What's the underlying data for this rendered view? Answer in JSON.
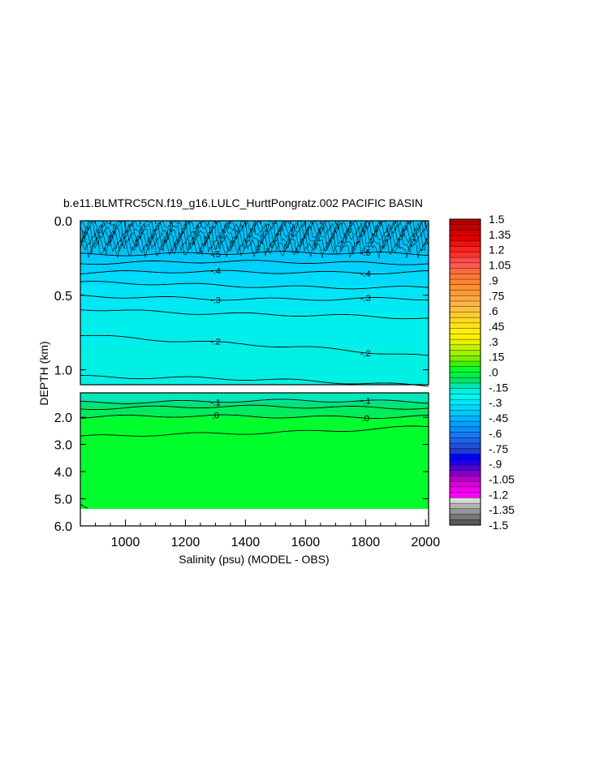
{
  "chart_data": {
    "type": "heatmap",
    "title": "b.e11.BLMTRC5CN.f19_g16.LULC_HurttPongratz.002 PACIFIC BASIN",
    "xlabel": "Salinity (psu) (MODEL - OBS)",
    "ylabel": "DEPTH (km)",
    "xlim": [
      850,
      2010
    ],
    "x_ticks": [
      "1000",
      "1200",
      "1400",
      "1600",
      "1800",
      "2000"
    ],
    "upper_panel": {
      "ylim": [
        0.0,
        1.1
      ],
      "y_ticks": [
        "0.0",
        "0.5",
        "1.0"
      ],
      "contours": [
        {
          "level": -0.5,
          "label": "-.5",
          "depth_left": 0.22,
          "depth_right": 0.22
        },
        {
          "level": -0.45,
          "depth_left": 0.28,
          "depth_right": 0.28
        },
        {
          "level": -0.4,
          "label": "-.4",
          "depth_left": 0.35,
          "depth_right": 0.34
        },
        {
          "level": -0.35,
          "depth_left": 0.42,
          "depth_right": 0.45
        },
        {
          "level": -0.3,
          "label": "-.3",
          "depth_left": 0.51,
          "depth_right": 0.53
        },
        {
          "level": -0.25,
          "depth_left": 0.59,
          "depth_right": 0.66
        },
        {
          "level": -0.2,
          "label": "-.2",
          "depth_left": 0.76,
          "depth_right": 0.91
        },
        {
          "level": -0.15,
          "depth_left": 1.04,
          "depth_right": 1.1
        }
      ]
    },
    "lower_panel": {
      "ylim": [
        1.1,
        6.0
      ],
      "y_ticks": [
        "2.0",
        "3.0",
        "4.0",
        "5.0",
        "6.0"
      ],
      "contours": [
        {
          "level": -0.1,
          "label": "-.1",
          "depth_left": 1.42,
          "depth_right": 1.42
        },
        {
          "level": -0.05,
          "depth_left": 1.65,
          "depth_right": 1.62
        },
        {
          "level": 0.0,
          "label": ".0",
          "depth_left": 2.0,
          "depth_right": 1.95
        },
        {
          "level": 0.05,
          "depth_left": 2.75,
          "depth_right": 2.35
        }
      ],
      "missing_below_km": 5.35
    },
    "colorbar": {
      "labels": [
        "1.5",
        "1.35",
        "1.2",
        "1.05",
        ".9",
        ".75",
        ".6",
        ".45",
        ".3",
        ".15",
        ".0",
        "-.15",
        "-.3",
        "-.45",
        "-.6",
        "-.75",
        "-.9",
        "-1.05",
        "-1.2",
        "-1.35",
        "-1.5"
      ],
      "colors": [
        "#b40000",
        "#c30000",
        "#d20000",
        "#e10000",
        "#f01010",
        "#ff2020",
        "#ff3030",
        "#ff4848",
        "#ff5a50",
        "#ff6a40",
        "#ff7838",
        "#ff8430",
        "#ff9030",
        "#ff9c38",
        "#ffa840",
        "#ffb448",
        "#ffc040",
        "#ffcc30",
        "#ffd820",
        "#ffe418",
        "#ffee10",
        "#fff200",
        "#e6f000",
        "#c8f000",
        "#a0f000",
        "#78f000",
        "#40f000",
        "#00ff2c",
        "#00f046",
        "#00e660",
        "#00e6b4",
        "#00f0e0",
        "#00f5f0",
        "#00e8f8",
        "#00d8ff",
        "#00c8ff",
        "#00b4ff",
        "#00a0ff",
        "#0a8cf5",
        "#1478f0",
        "#1e64e6",
        "#1e50dc",
        "#1e3cd2",
        "#0000ff",
        "#1e00e6",
        "#5000d2",
        "#8200c8",
        "#b400c8",
        "#dc00dc",
        "#f000f0",
        "#ff00ff",
        "#d8d8d8",
        "#b4b4b4",
        "#969696",
        "#787878",
        "#5a5a5a"
      ]
    },
    "grid": false
  }
}
